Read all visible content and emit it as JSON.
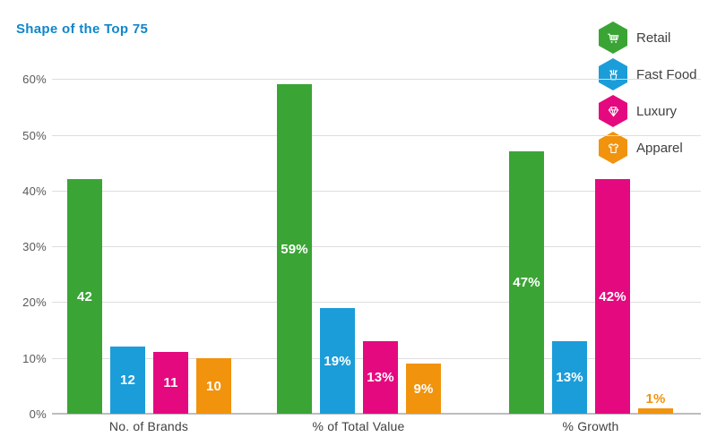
{
  "title": "Shape of the Top 75",
  "colors": {
    "title": "#1086C9",
    "retail": "#3AA535",
    "fast_food": "#1B9DD9",
    "luxury": "#E5097F",
    "apparel": "#F2930D",
    "gridline": "#DEDEDE",
    "axis_line": "#BDBDBD",
    "tick_text": "#58595B",
    "category_text": "#414042"
  },
  "legend": {
    "position": "top-right",
    "items": [
      {
        "label": "Retail",
        "icon": "cart-icon",
        "color": "#3AA535"
      },
      {
        "label": "Fast Food",
        "icon": "fries-icon",
        "color": "#1B9DD9"
      },
      {
        "label": "Luxury",
        "icon": "diamond-icon",
        "color": "#E5097F"
      },
      {
        "label": "Apparel",
        "icon": "tshirt-icon",
        "color": "#F2930D"
      }
    ]
  },
  "chart_data": {
    "type": "bar",
    "title": "Shape of the Top 75",
    "categories": [
      "No. of Brands",
      "% of Total Value",
      "% Growth"
    ],
    "series": [
      {
        "name": "Retail",
        "color": "#3AA535",
        "values": [
          42,
          59,
          47
        ],
        "labels": [
          "42",
          "59%",
          "47%"
        ]
      },
      {
        "name": "Fast Food",
        "color": "#1B9DD9",
        "values": [
          12,
          19,
          13
        ],
        "labels": [
          "12",
          "19%",
          "13%"
        ]
      },
      {
        "name": "Luxury",
        "color": "#E5097F",
        "values": [
          11,
          13,
          42
        ],
        "labels": [
          "11",
          "13%",
          "42%"
        ]
      },
      {
        "name": "Apparel",
        "color": "#F2930D",
        "values": [
          10,
          9,
          1
        ],
        "labels": [
          "10",
          "9%",
          "1%"
        ]
      }
    ],
    "xlabel": "",
    "ylabel": "",
    "ylim": [
      0,
      60
    ],
    "yticks": [
      "0%",
      "10%",
      "20%",
      "30%",
      "40%",
      "50%",
      "60%"
    ],
    "grid": true,
    "legend_position": "top-right"
  }
}
